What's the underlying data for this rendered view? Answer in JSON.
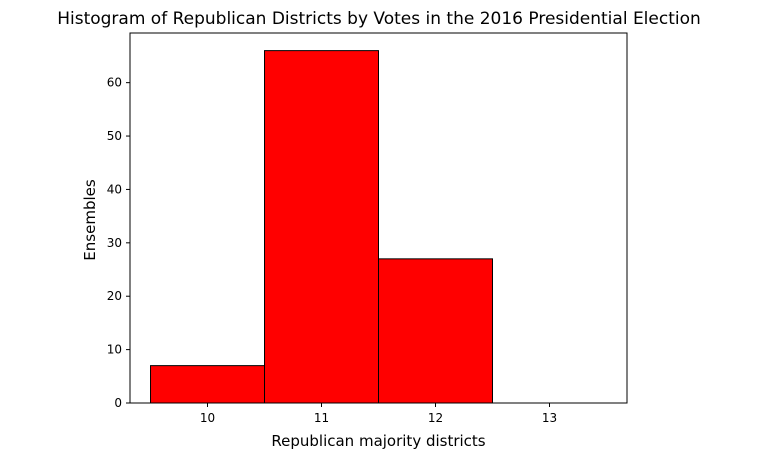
{
  "chart_data": {
    "type": "bar",
    "title": "Histogram of Republican Districts by Votes in the 2016 Presidential Election",
    "xlabel": "Republican majority districts",
    "ylabel": "Ensembles",
    "categories": [
      "10",
      "11",
      "12",
      "13"
    ],
    "values": [
      7,
      66,
      27,
      0
    ],
    "bins": [
      [
        9.5,
        10.5
      ],
      [
        10.5,
        11.5
      ],
      [
        11.5,
        12.5
      ],
      [
        12.5,
        13.5
      ]
    ],
    "xlim": [
      9.32,
      13.68
    ],
    "ylim": [
      0,
      69.3
    ],
    "xticks": [
      10,
      11,
      12,
      13
    ],
    "yticks": [
      0,
      10,
      20,
      30,
      40,
      50,
      60
    ],
    "bar_color": "#ff0000",
    "edge_color": "#000000",
    "grid": false,
    "legend": "none"
  }
}
